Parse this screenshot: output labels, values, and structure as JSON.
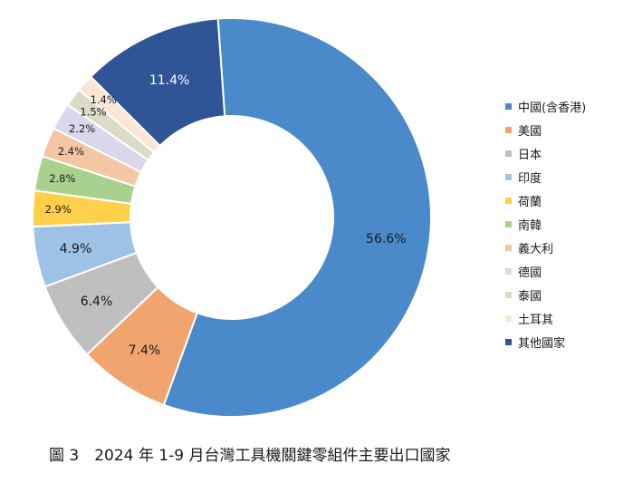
{
  "caption": "圖 3　2024 年 1-9 月台灣工具機關鍵零組件主要出口國家",
  "chart_data": {
    "type": "pie",
    "donut": true,
    "title": "",
    "legend_position": "right",
    "categories": [
      "中國(含香港)",
      "美國",
      "日本",
      "印度",
      "荷蘭",
      "南韓",
      "義大利",
      "德國",
      "泰國",
      "土耳其",
      "其他國家"
    ],
    "values": [
      56.6,
      7.4,
      6.4,
      4.9,
      2.9,
      2.8,
      2.4,
      2.2,
      1.5,
      1.4,
      11.4
    ],
    "labels": [
      "56.6%",
      "7.4%",
      "6.4%",
      "4.9%",
      "2.9%",
      "2.8%",
      "2.4%",
      "2.2%",
      "1.5%",
      "1.4%",
      "11.4%"
    ],
    "colors": [
      "#4A8ACB",
      "#F2A46F",
      "#BFBFBF",
      "#9DC2E6",
      "#FFD04B",
      "#A9D18E",
      "#F4C7A4",
      "#DCD6EC",
      "#DCDCC6",
      "#FBE6D6",
      "#2F5597"
    ],
    "label_colors": [
      "#1a1a1a",
      "#1a1a1a",
      "#1a1a1a",
      "#1a1a1a",
      "#1a1a1a",
      "#1a1a1a",
      "#1a1a1a",
      "#1a1a1a",
      "#1a1a1a",
      "#1a1a1a",
      "#ffffff"
    ]
  }
}
